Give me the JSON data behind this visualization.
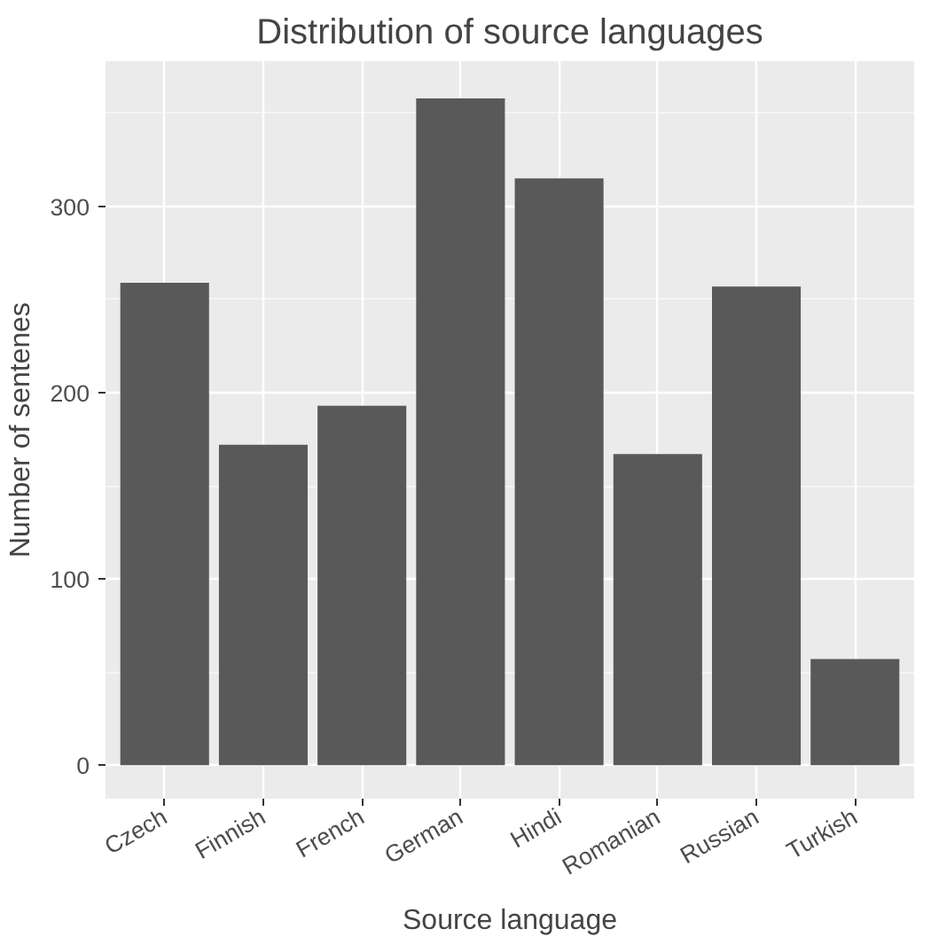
{
  "chart_data": {
    "type": "bar",
    "title": "Distribution of source languages",
    "xlabel": "Source language",
    "ylabel": "Number of sentenes",
    "categories": [
      "Czech",
      "Finnish",
      "French",
      "German",
      "Hindi",
      "Romanian",
      "Russian",
      "Turkish"
    ],
    "values": [
      259,
      172,
      193,
      358,
      315,
      167,
      257,
      57
    ],
    "color": "#595959",
    "ylim": [
      -18,
      378
    ],
    "yticks": [
      0,
      100,
      200,
      300
    ],
    "grid": true
  }
}
